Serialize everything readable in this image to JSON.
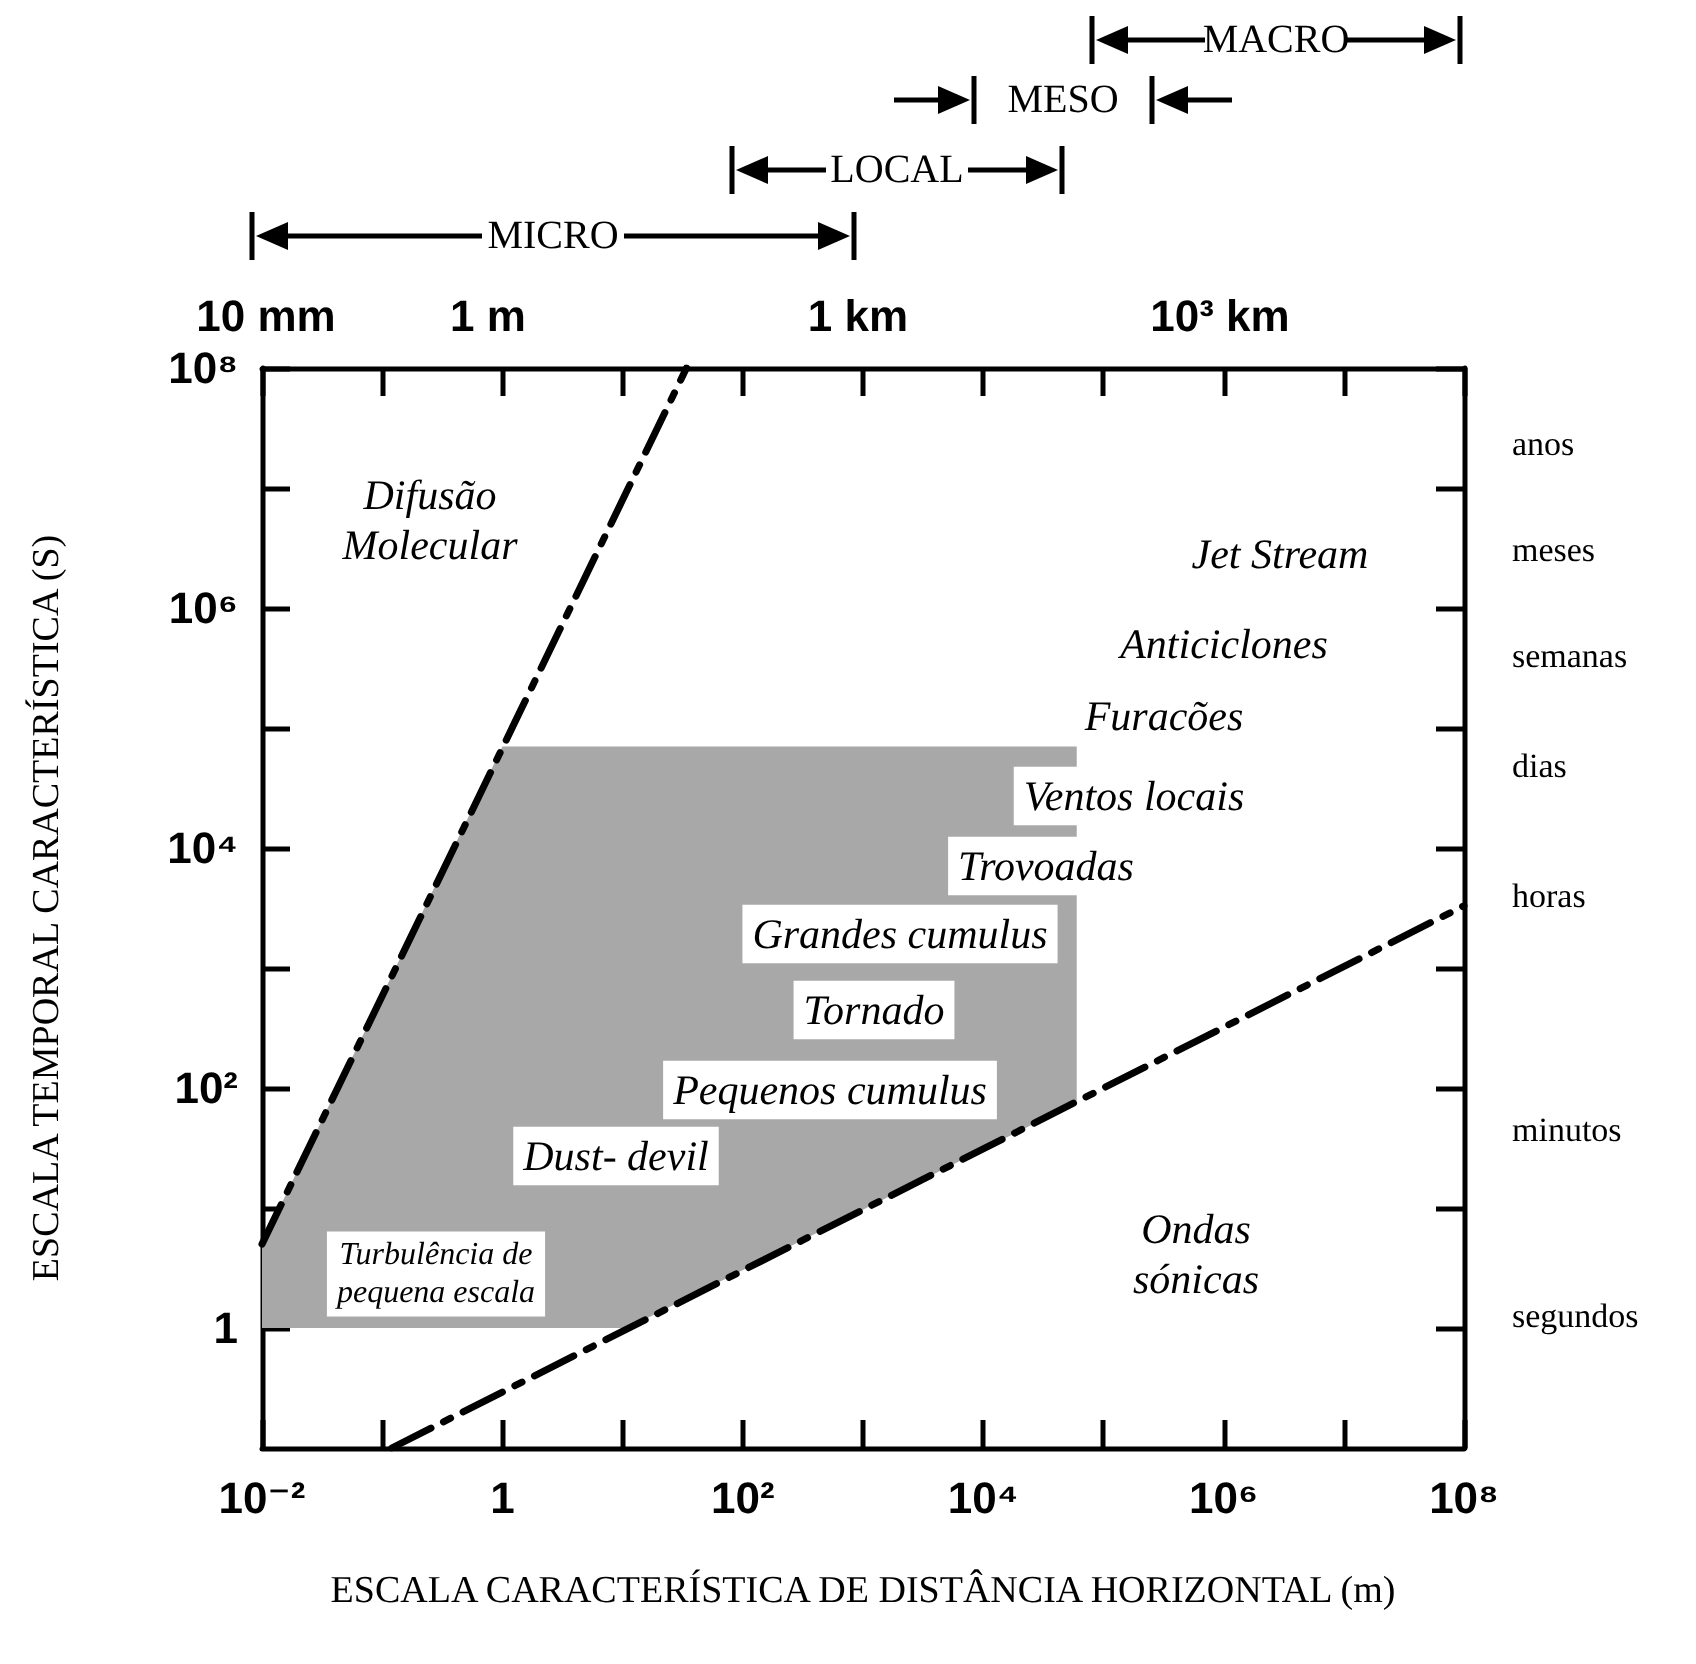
{
  "chart_data": {
    "type": "line",
    "xlabel": "ESCALA CARACTERÍSTICA DE DISTÂNCIA HORIZONTAL (m)",
    "ylabel": "ESCALA TEMPORAL CARACTERÍSTICA (S)",
    "log": "xy",
    "grid": false,
    "marker": "none",
    "line_style": "dashed",
    "xlim": [
      0.01,
      100000000
    ],
    "xticks": [
      {
        "value": 0.01,
        "label": "10⁻²"
      },
      {
        "value": 0.1,
        "label": null
      },
      1,
      {
        "value": 10,
        "label": null
      },
      {
        "value": 100,
        "label": "10²"
      },
      {
        "value": 1000,
        "label": null
      },
      {
        "value": 10000,
        "label": "10⁴"
      },
      {
        "value": 100000,
        "label": null
      },
      {
        "value": 1000000,
        "label": "10⁶"
      },
      {
        "value": 10000000,
        "label": null
      },
      {
        "value": 100000000,
        "label": "10⁸"
      }
    ],
    "ylim": [
      0.1,
      100000000
    ],
    "yticks": [
      1,
      {
        "value": 10,
        "label": null
      },
      {
        "value": 100,
        "label": "10²"
      },
      {
        "value": 1000,
        "label": null
      },
      {
        "value": 10000,
        "label": "10⁴"
      },
      {
        "value": 100000,
        "label": null
      },
      {
        "value": 1000000,
        "label": "10⁶"
      },
      {
        "value": 10000000,
        "label": null
      },
      {
        "value": 100000000,
        "label": "10⁸"
      }
    ],
    "series": [
      {
        "type": "area",
        "color": "#a8a8a8",
        "x": [
          0.01,
          1,
          60000,
          60000,
          11,
          0.01
        ],
        "values": [
          5,
          70000,
          70000,
          76,
          1,
          1
        ]
      },
      {
        "color": "#000000",
        "x": [
          0.01,
          34
        ],
        "values": [
          5,
          100000000
        ]
      },
      {
        "color": "#000000",
        "x": [
          0.12,
          100000000
        ],
        "values": [
          0.1,
          3300
        ]
      }
    ],
    "annotations": [
      "MICRO",
      "LOCAL",
      "MESO",
      "MACRO",
      "10 mm",
      "1 m",
      "1 km",
      "10³ km",
      "anos",
      "meses",
      "semanas",
      "dias",
      "horas",
      "minutos",
      "segundos",
      "Difusão\nMolecular",
      "Jet Stream",
      "Anticiclones",
      "Furacões",
      "Ventos locais",
      "Trovoadas",
      "Grandes cumulus",
      "Tornado",
      "Pequenos cumulus",
      "Dust- devil",
      "Turbulência de\npequena escala",
      "Ondas\nsónicas"
    ]
  }
}
